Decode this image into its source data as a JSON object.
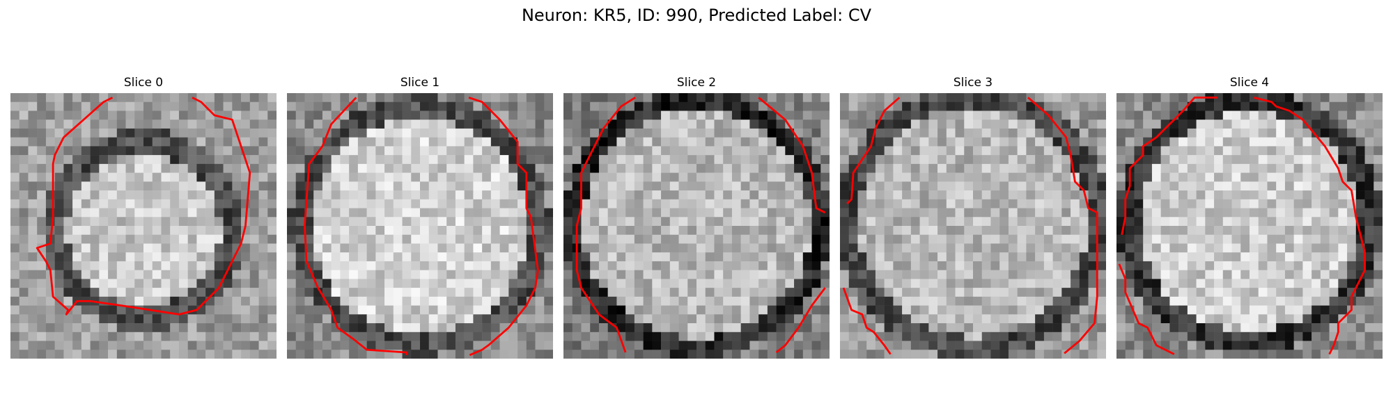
{
  "figure": {
    "title": "Neuron: KR5, ID: 990, Predicted Label: CV"
  },
  "panels": [
    {
      "title": "Slice 0"
    },
    {
      "title": "Slice 1"
    },
    {
      "title": "Slice 2"
    },
    {
      "title": "Slice 3"
    },
    {
      "title": "Slice 4"
    }
  ],
  "colors": {
    "background": "#ffffff",
    "contour": "#ff0000",
    "colormap": "gray"
  }
}
